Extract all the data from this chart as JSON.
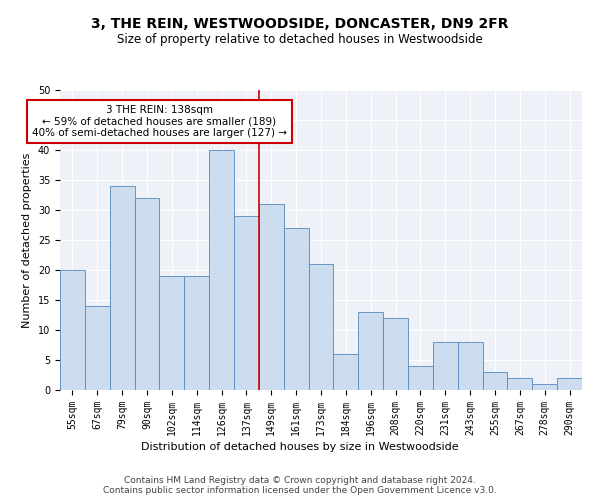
{
  "title": "3, THE REIN, WESTWOODSIDE, DONCASTER, DN9 2FR",
  "subtitle": "Size of property relative to detached houses in Westwoodside",
  "xlabel": "Distribution of detached houses by size in Westwoodside",
  "ylabel": "Number of detached properties",
  "categories": [
    "55sqm",
    "67sqm",
    "79sqm",
    "90sqm",
    "102sqm",
    "114sqm",
    "126sqm",
    "137sqm",
    "149sqm",
    "161sqm",
    "173sqm",
    "184sqm",
    "196sqm",
    "208sqm",
    "220sqm",
    "231sqm",
    "243sqm",
    "255sqm",
    "267sqm",
    "278sqm",
    "290sqm"
  ],
  "values": [
    20,
    14,
    34,
    32,
    19,
    19,
    40,
    29,
    31,
    27,
    21,
    6,
    13,
    12,
    4,
    8,
    8,
    3,
    2,
    1,
    2
  ],
  "bar_color": "#ccddef",
  "bar_edge_color": "#5588bb",
  "vline_x_index": 7.5,
  "vline_color": "#cc0000",
  "annotation_text": "3 THE REIN: 138sqm\n← 59% of detached houses are smaller (189)\n40% of semi-detached houses are larger (127) →",
  "annotation_box_color": "#ffffff",
  "annotation_box_edge": "#cc0000",
  "footer_text": "Contains HM Land Registry data © Crown copyright and database right 2024.\nContains public sector information licensed under the Open Government Licence v3.0.",
  "ylim": [
    0,
    50
  ],
  "background_color": "#eef2f8",
  "grid_color": "#ffffff",
  "title_fontsize": 10,
  "subtitle_fontsize": 8.5,
  "axis_label_fontsize": 8,
  "tick_fontsize": 7,
  "footer_fontsize": 6.5,
  "annotation_fontsize": 7.5
}
